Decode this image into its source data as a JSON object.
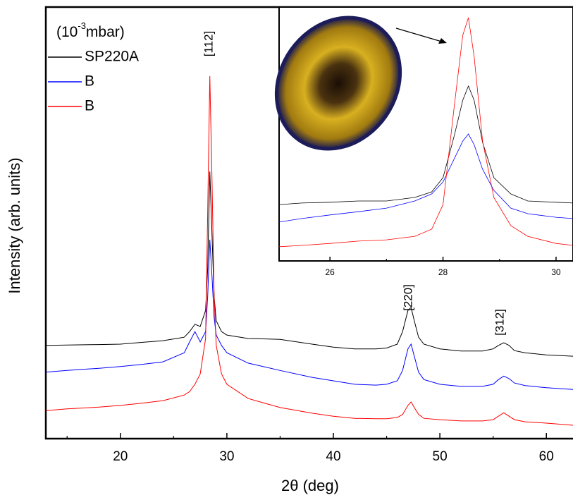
{
  "chart_data": [
    {
      "type": "line",
      "x_label": "2θ (deg)",
      "y_label": "Intensity (arb. units)",
      "legend_title": {
        "base": "(10",
        "exponent": "-3",
        "rest": "mbar)"
      },
      "legend": "upper left",
      "xlim": [
        13,
        62.5
      ],
      "ylim": [
        0,
        100
      ],
      "xticks": [
        20,
        30,
        40,
        50,
        60
      ],
      "xminorticks": [
        15,
        25,
        35,
        45,
        55
      ],
      "annotations": [
        "[112]",
        "[220]",
        "[312]"
      ],
      "x": [
        13,
        15,
        18,
        20,
        22,
        24,
        26,
        26.5,
        27,
        27.5,
        28,
        28.2,
        28.4,
        28.6,
        28.8,
        29,
        29.5,
        30,
        32,
        35,
        38,
        40,
        42,
        44,
        45,
        46,
        46.5,
        47,
        47.3,
        47.6,
        48,
        48.5,
        50,
        52,
        54,
        55,
        55.5,
        56,
        56.5,
        57,
        58,
        60,
        62.5
      ],
      "series": [
        {
          "name": "SP220A",
          "color": "#000000",
          "values": [
            21.6,
            21.7,
            21.8,
            21.9,
            22.3,
            22.7,
            23.5,
            24.8,
            26.5,
            26,
            29.7,
            39.5,
            61.9,
            47.7,
            33,
            27.3,
            24.8,
            24,
            23.2,
            23,
            21.9,
            21.2,
            20.8,
            20.8,
            21,
            21.9,
            24.8,
            29.7,
            30.4,
            27.3,
            23.5,
            21.9,
            20.8,
            20.3,
            20.3,
            20.8,
            21.6,
            22.2,
            21.6,
            20.4,
            19.9,
            19.4,
            19.1
          ]
        },
        {
          "name": "B",
          "color": "#0000ff",
          "values": [
            15.4,
            15.8,
            16.3,
            16.7,
            17.2,
            17.8,
            19.9,
            22.4,
            24.8,
            22.4,
            24.8,
            33,
            46.1,
            37.9,
            28.1,
            24,
            21.6,
            19.9,
            17.5,
            15.8,
            14.2,
            13.4,
            12.6,
            12.4,
            12.6,
            13.4,
            15.8,
            20.8,
            21.9,
            19.1,
            15.4,
            13.7,
            12.6,
            12.1,
            12.1,
            12.6,
            13.7,
            14.5,
            13.9,
            12.9,
            12.3,
            11.8,
            11.4
          ]
        },
        {
          "name": "B",
          "color": "#ff0000",
          "values": [
            6.5,
            6.9,
            7.3,
            7.7,
            8.2,
            8.8,
            10.1,
            10.9,
            12.6,
            15,
            23.2,
            52.6,
            84,
            60.8,
            33,
            21.6,
            15,
            12.6,
            9.3,
            7.2,
            5.9,
            5.2,
            4.7,
            4.6,
            4.6,
            4.9,
            5.6,
            7.7,
            8.5,
            7.2,
            5.6,
            4.7,
            4.4,
            4.1,
            4.1,
            4.4,
            5.2,
            6,
            5.2,
            4.4,
            3.9,
            3.6,
            3.1
          ]
        }
      ]
    },
    {
      "type": "line",
      "xlim": [
        25.1,
        30.3
      ],
      "ylim": [
        0,
        100
      ],
      "xticks": [
        26,
        28,
        30
      ],
      "xminorticks": [
        27,
        29
      ],
      "x": [
        25.1,
        25.5,
        26,
        26.5,
        27,
        27.5,
        27.8,
        28,
        28.2,
        28.35,
        28.45,
        28.55,
        28.7,
        28.9,
        29.2,
        29.5,
        30,
        30.3
      ],
      "series": [
        {
          "color": "#000000",
          "values": [
            22.2,
            22.8,
            23.1,
            23.6,
            23.6,
            25,
            27.2,
            32.8,
            49.4,
            63.3,
            68.9,
            63.3,
            46.7,
            32.8,
            26.4,
            23.6,
            23.1,
            22.8
          ]
        },
        {
          "color": "#0000ff",
          "values": [
            15.3,
            16.7,
            18.1,
            19.4,
            20.8,
            23.6,
            26.4,
            31.1,
            40.3,
            47.2,
            50,
            45.8,
            36.1,
            27.8,
            20.8,
            18.6,
            17.2,
            16.7
          ]
        },
        {
          "color": "#ff0000",
          "values": [
            5.6,
            6.1,
            6.9,
            7.8,
            8.3,
            9.7,
            12.5,
            22.2,
            61.1,
            88.9,
            95.8,
            80.6,
            47.2,
            25,
            13.9,
            9.7,
            6.9,
            6.1
          ]
        }
      ]
    }
  ]
}
